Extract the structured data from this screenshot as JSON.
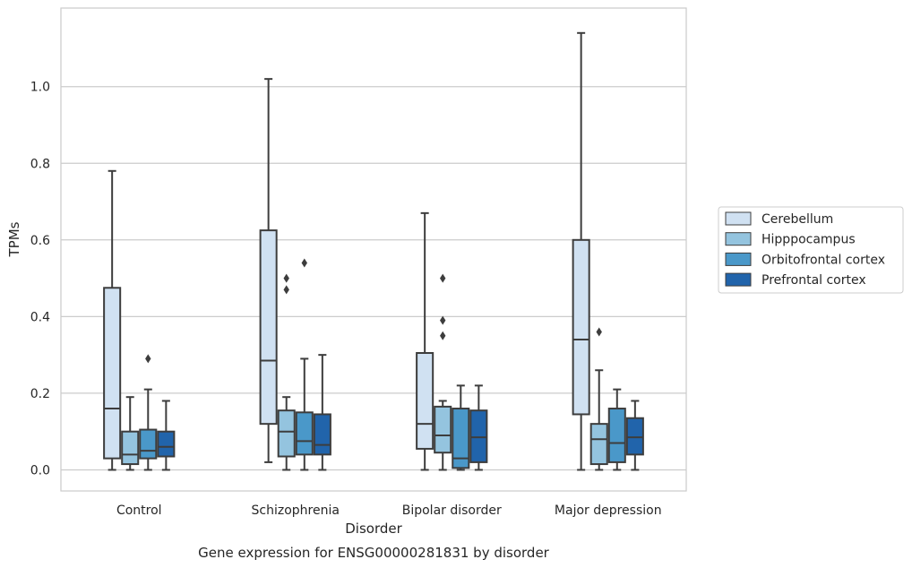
{
  "chart_data": {
    "type": "box",
    "title": "",
    "caption": "Gene expression for ENSG00000281831 by disorder",
    "xlabel": "Disorder",
    "ylabel": "TPMs",
    "ylim": [
      -0.055,
      1.205
    ],
    "yticks": [
      0.0,
      0.2,
      0.4,
      0.6,
      0.8,
      1.0
    ],
    "ytick_labels": [
      "0.0",
      "0.2",
      "0.4",
      "0.6",
      "0.8",
      "1.0"
    ],
    "grid": "horizontal",
    "legend_position": "right",
    "categories": [
      "Control",
      "Schizophrenia",
      "Bipolar disorder",
      "Major depression"
    ],
    "series": [
      {
        "name": "Cerebellum",
        "color": "#d0e1f2",
        "boxes": [
          {
            "whislo": 0.0,
            "q1": 0.03,
            "med": 0.16,
            "q3": 0.475,
            "whishi": 0.78,
            "fliers": []
          },
          {
            "whislo": 0.02,
            "q1": 0.12,
            "med": 0.285,
            "q3": 0.625,
            "whishi": 1.02,
            "fliers": []
          },
          {
            "whislo": 0.0,
            "q1": 0.055,
            "med": 0.12,
            "q3": 0.305,
            "whishi": 0.67,
            "fliers": []
          },
          {
            "whislo": 0.0,
            "q1": 0.145,
            "med": 0.34,
            "q3": 0.6,
            "whishi": 1.14,
            "fliers": []
          }
        ]
      },
      {
        "name": "Hipppocampus",
        "color": "#94c4df",
        "boxes": [
          {
            "whislo": 0.0,
            "q1": 0.015,
            "med": 0.04,
            "q3": 0.1,
            "whishi": 0.19,
            "fliers": []
          },
          {
            "whislo": 0.0,
            "q1": 0.035,
            "med": 0.1,
            "q3": 0.155,
            "whishi": 0.19,
            "fliers": [
              0.47,
              0.5
            ]
          },
          {
            "whislo": 0.0,
            "q1": 0.045,
            "med": 0.09,
            "q3": 0.165,
            "whishi": 0.18,
            "fliers": [
              0.35,
              0.39,
              0.5
            ]
          },
          {
            "whislo": 0.0,
            "q1": 0.015,
            "med": 0.08,
            "q3": 0.12,
            "whishi": 0.26,
            "fliers": [
              0.36
            ]
          }
        ]
      },
      {
        "name": "Orbitofrontal cortex",
        "color": "#4a98c9",
        "boxes": [
          {
            "whislo": 0.0,
            "q1": 0.03,
            "med": 0.05,
            "q3": 0.105,
            "whishi": 0.21,
            "fliers": [
              0.29
            ]
          },
          {
            "whislo": 0.0,
            "q1": 0.04,
            "med": 0.075,
            "q3": 0.15,
            "whishi": 0.29,
            "fliers": [
              0.54
            ]
          },
          {
            "whislo": 0.0,
            "q1": 0.005,
            "med": 0.03,
            "q3": 0.16,
            "whishi": 0.22,
            "fliers": []
          },
          {
            "whislo": 0.0,
            "q1": 0.02,
            "med": 0.07,
            "q3": 0.16,
            "whishi": 0.21,
            "fliers": []
          }
        ]
      },
      {
        "name": "Prefrontal cortex",
        "color": "#2164ab",
        "boxes": [
          {
            "whislo": 0.0,
            "q1": 0.035,
            "med": 0.06,
            "q3": 0.1,
            "whishi": 0.18,
            "fliers": []
          },
          {
            "whislo": 0.0,
            "q1": 0.04,
            "med": 0.065,
            "q3": 0.145,
            "whishi": 0.3,
            "fliers": []
          },
          {
            "whislo": 0.0,
            "q1": 0.02,
            "med": 0.085,
            "q3": 0.155,
            "whishi": 0.22,
            "fliers": []
          },
          {
            "whislo": 0.0,
            "q1": 0.04,
            "med": 0.085,
            "q3": 0.135,
            "whishi": 0.18,
            "fliers": []
          }
        ]
      }
    ]
  }
}
